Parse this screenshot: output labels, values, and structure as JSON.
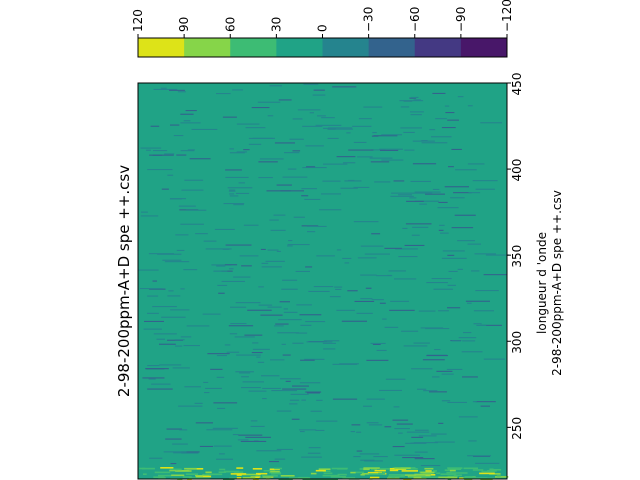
{
  "chart_data": {
    "type": "heatmap",
    "title": "2-98-200ppm-A+D spe  ++.csv",
    "ylabel": "longueur d 'onde",
    "ylabel_sub": "2-98-200ppm-A+D spe  ++.csv",
    "y_axis_side": "right",
    "orientation": "rotated-90",
    "ylim": [
      220,
      450
    ],
    "yticks": [
      250,
      300,
      350,
      400,
      450
    ],
    "colorbar": {
      "orientation": "horizontal",
      "position": "top",
      "levels": [
        120,
        90,
        60,
        30,
        0,
        -30,
        -60,
        -90,
        -120
      ],
      "tick_labels": [
        "120",
        "90",
        "60",
        "30",
        "0",
        "−30",
        "−60",
        "−90",
        "−120"
      ],
      "colors": [
        "#dde318",
        "#86d549",
        "#3dbc74",
        "#20a386",
        "#25848e",
        "#33638d",
        "#443983",
        "#481769"
      ]
    },
    "background_level_range": [
      0,
      30
    ],
    "features": [
      {
        "description_value": "sparse short streaks in level 0 to -30 throughout"
      },
      {
        "description_value": "bright band levels 30 to 120 near 220-228"
      }
    ],
    "grid": false
  }
}
